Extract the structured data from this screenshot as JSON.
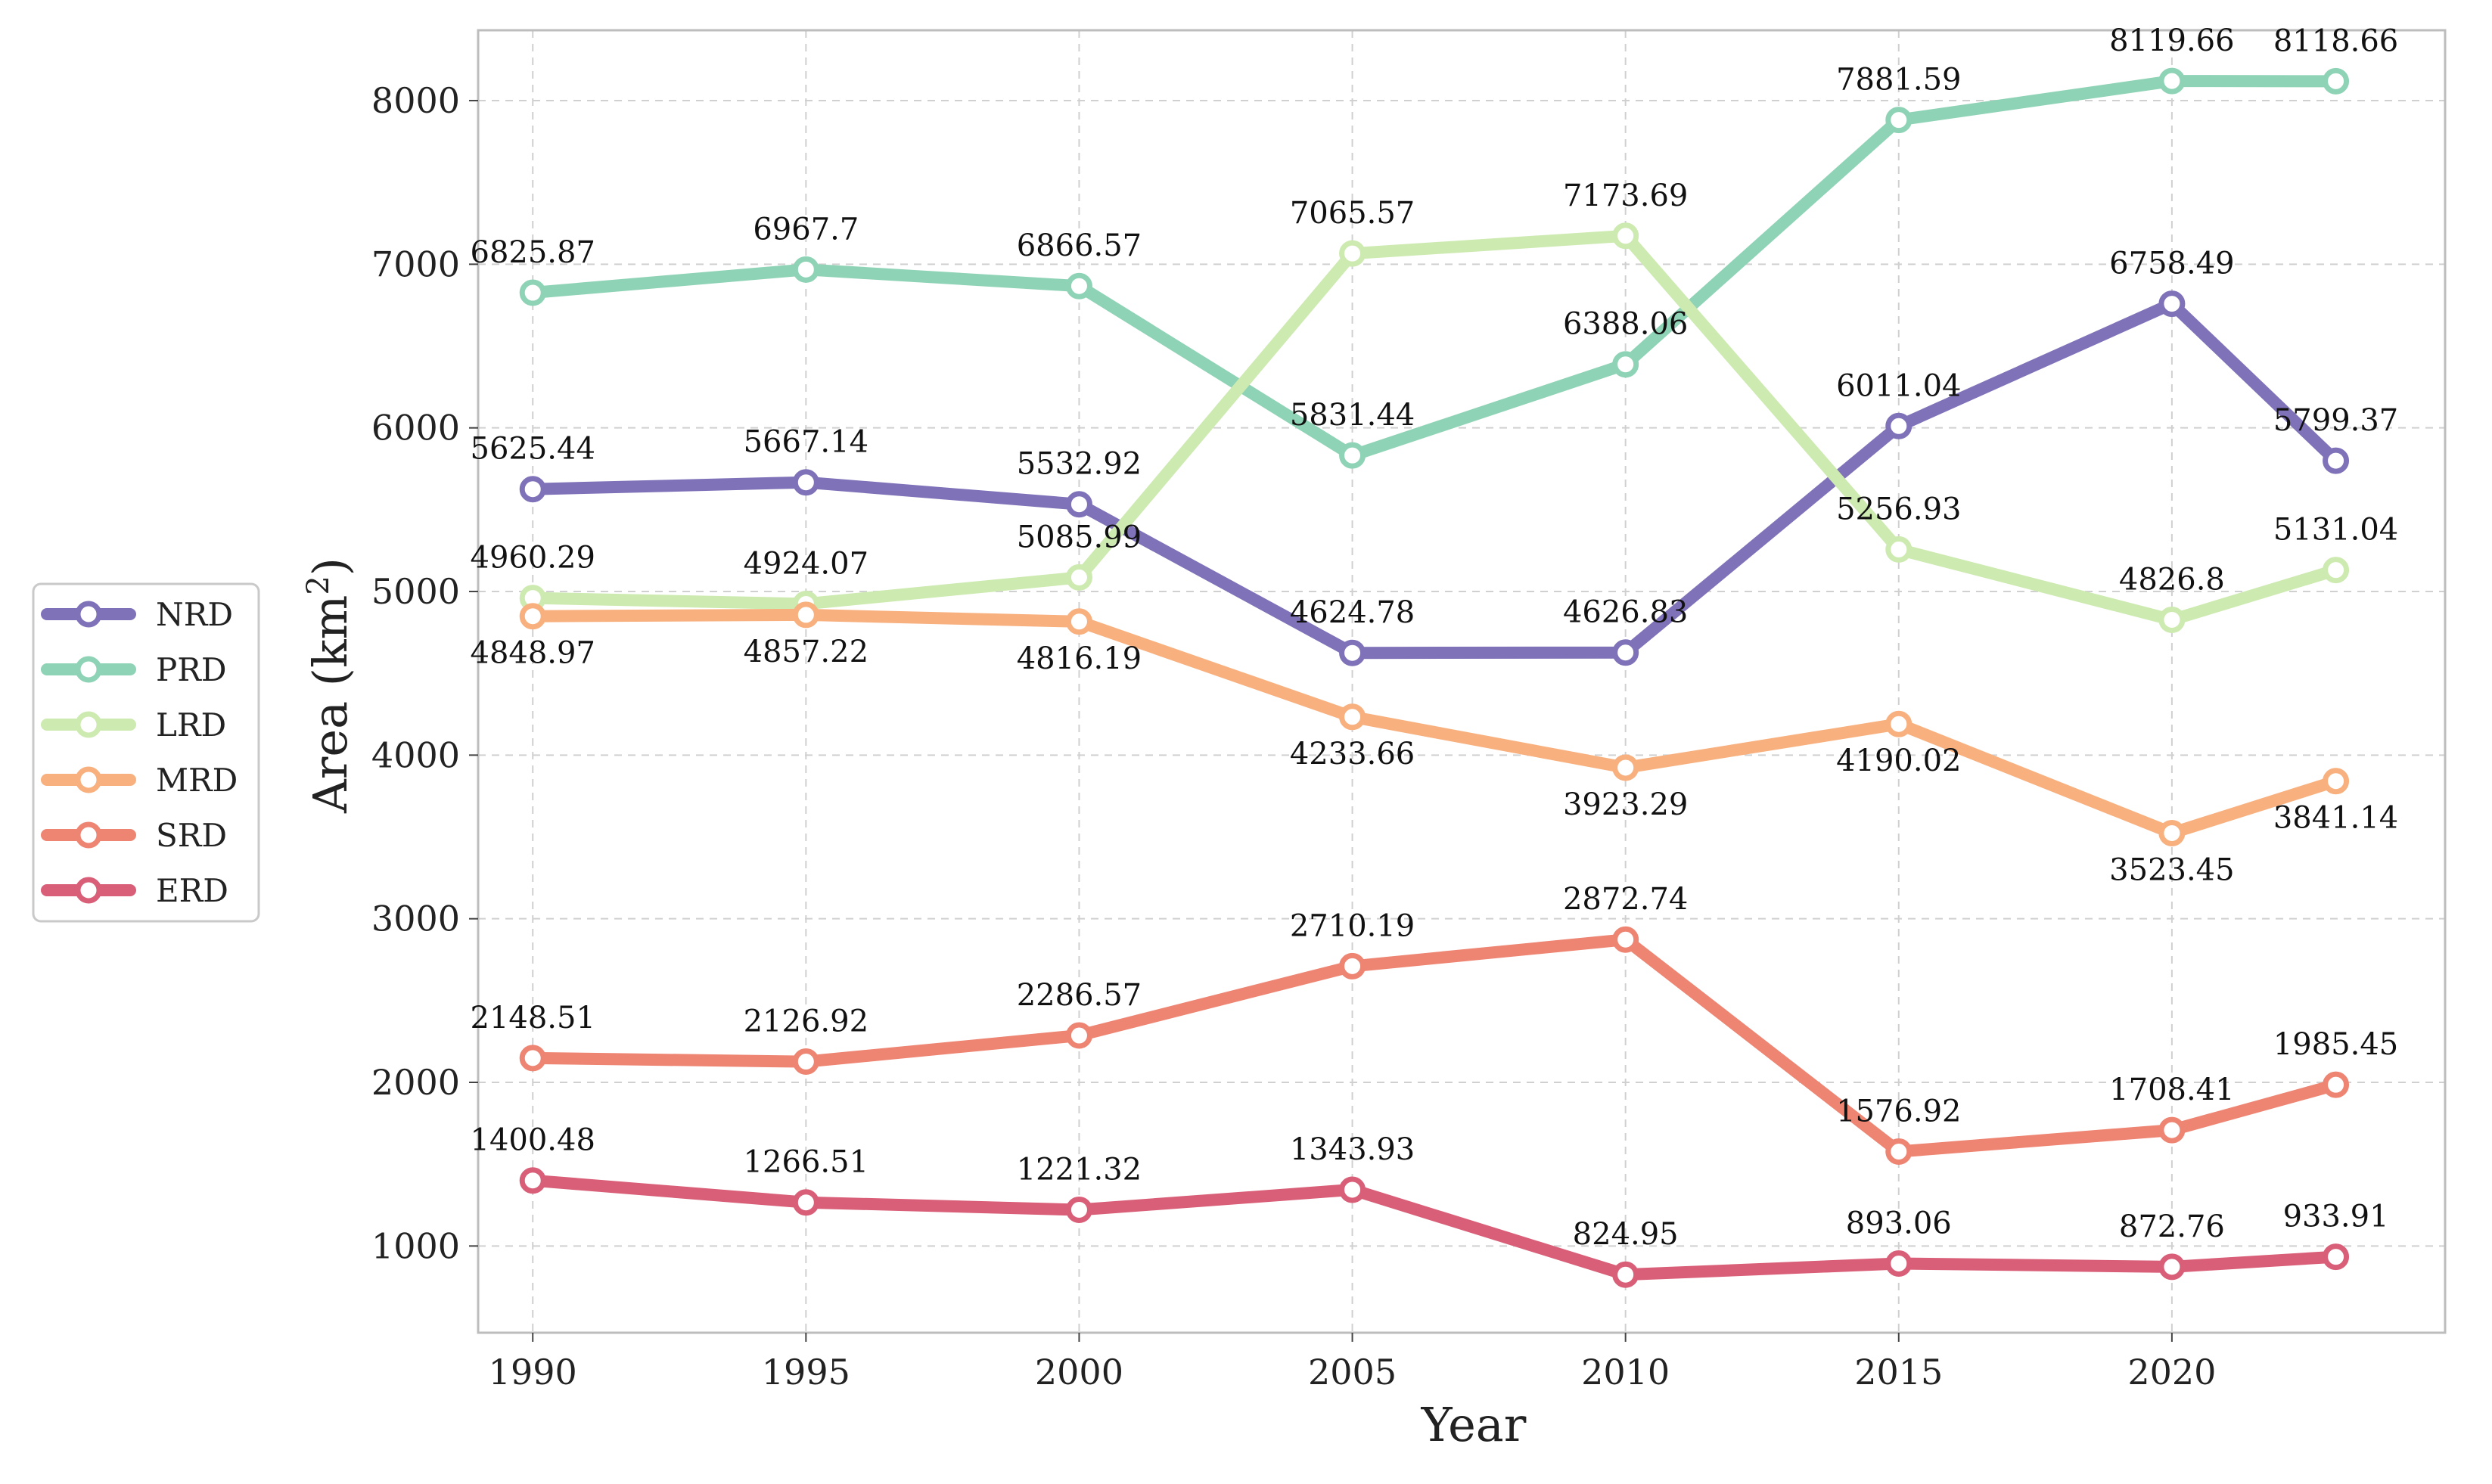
{
  "chart_data": {
    "type": "line",
    "title": "",
    "xlabel": "Year",
    "ylabel_main": "Area (km",
    "ylabel_sup": "2",
    "ylabel_close": ")",
    "x": [
      1990,
      1995,
      2000,
      2005,
      2010,
      2015,
      2020,
      2023
    ],
    "xticks": [
      "1990",
      "1995",
      "2000",
      "2005",
      "2010",
      "2015",
      "2020"
    ],
    "yticks": [
      "1000",
      "2000",
      "3000",
      "4000",
      "5000",
      "6000",
      "7000",
      "8000"
    ],
    "xlim": [
      1989,
      2025
    ],
    "ylim": [
      470,
      8430
    ],
    "grid": true,
    "legend_position": "outside-left",
    "series": [
      {
        "name": "NRD",
        "color": "#7f72b8",
        "values": [
          5625.44,
          5667.14,
          5532.92,
          4624.78,
          4626.83,
          6011.04,
          6758.49,
          5799.37
        ],
        "labels": [
          "5625.44",
          "5667.14",
          "5532.92",
          "4624.78",
          "4626.83",
          "6011.04",
          "6758.49",
          "5799.37"
        ],
        "label_pos": [
          "above",
          "above",
          "above",
          "above",
          "above",
          "above",
          "above",
          "above"
        ]
      },
      {
        "name": "PRD",
        "color": "#8fd3b6",
        "values": [
          6825.87,
          6967.7,
          6866.57,
          5831.44,
          6388.06,
          7881.59,
          8119.66,
          8118.66
        ],
        "labels": [
          "6825.87",
          "6967.7",
          "6866.57",
          "5831.44",
          "6388.06",
          "7881.59",
          "8119.66",
          "8118.66"
        ],
        "label_pos": [
          "above",
          "above",
          "above",
          "above",
          "above",
          "above",
          "above",
          "above"
        ]
      },
      {
        "name": "LRD",
        "color": "#cdeab0",
        "values": [
          4960.29,
          4924.07,
          5085.99,
          7065.57,
          7173.69,
          5256.93,
          4826.8,
          5131.04
        ],
        "labels": [
          "4960.29",
          "4924.07",
          "5085.99",
          "7065.57",
          "7173.69",
          "5256.93",
          "4826.8",
          "5131.04"
        ],
        "label_pos": [
          "above",
          "above",
          "above",
          "above",
          "above",
          "above",
          "above",
          "above"
        ]
      },
      {
        "name": "MRD",
        "color": "#f8b07e",
        "values": [
          4848.97,
          4857.22,
          4816.19,
          4233.66,
          3923.29,
          4190.02,
          3523.45,
          3841.14
        ],
        "labels": [
          "4848.97",
          "4857.22",
          "4816.19",
          "4233.66",
          "3923.29",
          "4190.02",
          "3523.45",
          "3841.14"
        ],
        "label_pos": [
          "below",
          "below",
          "below",
          "below",
          "below",
          "below",
          "below",
          "below"
        ]
      },
      {
        "name": "SRD",
        "color": "#ee8472",
        "values": [
          2148.51,
          2126.92,
          2286.57,
          2710.19,
          2872.74,
          1576.92,
          1708.41,
          1985.45
        ],
        "labels": [
          "2148.51",
          "2126.92",
          "2286.57",
          "2710.19",
          "2872.74",
          "1576.92",
          "1708.41",
          "1985.45"
        ],
        "label_pos": [
          "above",
          "above",
          "above",
          "above",
          "above",
          "above",
          "above",
          "above"
        ]
      },
      {
        "name": "ERD",
        "color": "#d95e77",
        "values": [
          1400.48,
          1266.51,
          1221.32,
          1343.93,
          824.95,
          893.06,
          872.76,
          933.91
        ],
        "labels": [
          "1400.48",
          "1266.51",
          "1221.32",
          "1343.93",
          "824.95",
          "893.06",
          "872.76",
          "933.91"
        ],
        "label_pos": [
          "above",
          "above",
          "above",
          "above",
          "above",
          "above",
          "above",
          "above"
        ]
      }
    ]
  }
}
